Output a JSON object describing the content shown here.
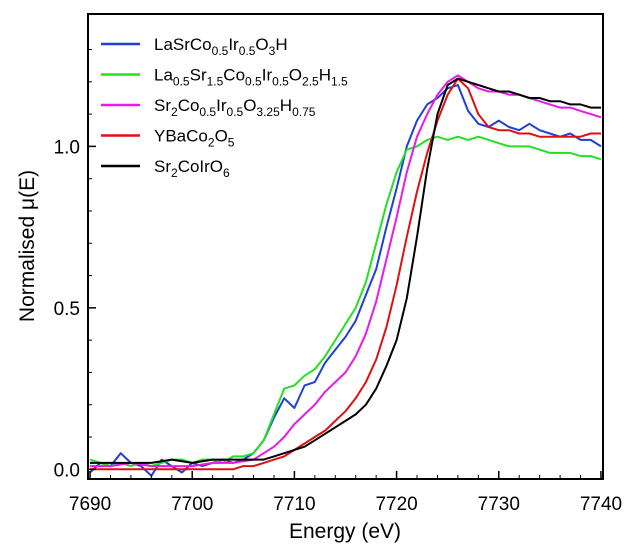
{
  "chart_data": {
    "type": "line",
    "xlabel": "Energy (eV)",
    "ylabel": "Normalised μ(E)",
    "xlim": [
      7689.8,
      7740.2
    ],
    "ylim": [
      -0.03,
      1.41
    ],
    "xticks": [
      7690,
      7700,
      7710,
      7720,
      7730,
      7740
    ],
    "yticks": [
      0.0,
      0.5,
      1.0
    ],
    "ytick_labels": [
      "0.0",
      "0.5",
      "1.0"
    ],
    "legend_position": "top-left",
    "series": [
      {
        "name": "LaSrCo0.5Ir0.5O3H",
        "label_parts": [
          [
            "LaSrCo",
            ""
          ],
          [
            "0.5",
            "sub"
          ],
          [
            "Ir",
            ""
          ],
          [
            "0.5",
            "sub"
          ],
          [
            "O",
            ""
          ],
          [
            "3",
            "sub"
          ],
          [
            "H",
            ""
          ]
        ],
        "color": "#1f3fd8",
        "points": [
          [
            7690,
            -0.01
          ],
          [
            7691,
            0.02
          ],
          [
            7692,
            0.01
          ],
          [
            7693,
            0.05
          ],
          [
            7694,
            0.02
          ],
          [
            7695,
            0.01
          ],
          [
            7696,
            -0.02
          ],
          [
            7697,
            0.03
          ],
          [
            7698,
            0.01
          ],
          [
            7699,
            -0.01
          ],
          [
            7700,
            0.02
          ],
          [
            7701,
            0.01
          ],
          [
            7702,
            0.02
          ],
          [
            7703,
            0.03
          ],
          [
            7704,
            0.02
          ],
          [
            7705,
            0.03
          ],
          [
            7706,
            0.05
          ],
          [
            7707,
            0.09
          ],
          [
            7708,
            0.16
          ],
          [
            7709,
            0.22
          ],
          [
            7710,
            0.19
          ],
          [
            7711,
            0.26
          ],
          [
            7712,
            0.27
          ],
          [
            7713,
            0.33
          ],
          [
            7714,
            0.37
          ],
          [
            7715,
            0.41
          ],
          [
            7716,
            0.46
          ],
          [
            7717,
            0.54
          ],
          [
            7718,
            0.62
          ],
          [
            7719,
            0.75
          ],
          [
            7720,
            0.87
          ],
          [
            7721,
            1.0
          ],
          [
            7722,
            1.08
          ],
          [
            7723,
            1.13
          ],
          [
            7724,
            1.15
          ],
          [
            7725,
            1.18
          ],
          [
            7726,
            1.19
          ],
          [
            7727,
            1.11
          ],
          [
            7728,
            1.07
          ],
          [
            7729,
            1.06
          ],
          [
            7730,
            1.08
          ],
          [
            7731,
            1.06
          ],
          [
            7732,
            1.05
          ],
          [
            7733,
            1.07
          ],
          [
            7734,
            1.05
          ],
          [
            7735,
            1.04
          ],
          [
            7736,
            1.03
          ],
          [
            7737,
            1.04
          ],
          [
            7738,
            1.02
          ],
          [
            7739,
            1.02
          ],
          [
            7740,
            1.0
          ]
        ]
      },
      {
        "name": "La0.5Sr1.5Co0.5Ir0.5O2.5H1.5",
        "label_parts": [
          [
            "La",
            ""
          ],
          [
            "0.5",
            "sub"
          ],
          [
            "Sr",
            ""
          ],
          [
            "1.5",
            "sub"
          ],
          [
            "Co",
            ""
          ],
          [
            "0.5",
            "sub"
          ],
          [
            "Ir",
            ""
          ],
          [
            "0.5",
            "sub"
          ],
          [
            "O",
            ""
          ],
          [
            "2.5",
            "sub"
          ],
          [
            "H",
            ""
          ],
          [
            "1.5",
            "sub"
          ]
        ],
        "color": "#22e022",
        "points": [
          [
            7690,
            0.03
          ],
          [
            7691,
            0.02
          ],
          [
            7692,
            0.01
          ],
          [
            7693,
            0.02
          ],
          [
            7694,
            0.01
          ],
          [
            7695,
            0.02
          ],
          [
            7696,
            0.01
          ],
          [
            7697,
            0.02
          ],
          [
            7698,
            0.03
          ],
          [
            7699,
            0.03
          ],
          [
            7700,
            0.02
          ],
          [
            7701,
            0.03
          ],
          [
            7702,
            0.03
          ],
          [
            7703,
            0.02
          ],
          [
            7704,
            0.04
          ],
          [
            7705,
            0.04
          ],
          [
            7706,
            0.05
          ],
          [
            7707,
            0.09
          ],
          [
            7708,
            0.17
          ],
          [
            7709,
            0.25
          ],
          [
            7710,
            0.26
          ],
          [
            7711,
            0.29
          ],
          [
            7712,
            0.31
          ],
          [
            7713,
            0.35
          ],
          [
            7714,
            0.4
          ],
          [
            7715,
            0.45
          ],
          [
            7716,
            0.5
          ],
          [
            7717,
            0.58
          ],
          [
            7718,
            0.7
          ],
          [
            7719,
            0.82
          ],
          [
            7720,
            0.92
          ],
          [
            7721,
            0.99
          ],
          [
            7722,
            1.0
          ],
          [
            7723,
            1.02
          ],
          [
            7724,
            1.03
          ],
          [
            7725,
            1.02
          ],
          [
            7726,
            1.03
          ],
          [
            7727,
            1.02
          ],
          [
            7728,
            1.03
          ],
          [
            7729,
            1.02
          ],
          [
            7730,
            1.01
          ],
          [
            7731,
            1.0
          ],
          [
            7732,
            1.0
          ],
          [
            7733,
            1.0
          ],
          [
            7734,
            0.99
          ],
          [
            7735,
            0.98
          ],
          [
            7736,
            0.98
          ],
          [
            7737,
            0.98
          ],
          [
            7738,
            0.97
          ],
          [
            7739,
            0.97
          ],
          [
            7740,
            0.96
          ]
        ]
      },
      {
        "name": "Sr2Co0.5Ir0.5O3.25H0.75",
        "label_parts": [
          [
            "Sr",
            ""
          ],
          [
            "2",
            "sub"
          ],
          [
            "Co",
            ""
          ],
          [
            "0.5",
            "sub"
          ],
          [
            "Ir",
            ""
          ],
          [
            "0.5",
            "sub"
          ],
          [
            "O",
            ""
          ],
          [
            "3.25",
            "sub"
          ],
          [
            "H",
            ""
          ],
          [
            "0.75",
            "sub"
          ]
        ],
        "color": "#e81ae8",
        "points": [
          [
            7690,
            0.01
          ],
          [
            7692,
            0.01
          ],
          [
            7694,
            0.02
          ],
          [
            7696,
            0.01
          ],
          [
            7698,
            0.01
          ],
          [
            7700,
            0.01
          ],
          [
            7702,
            0.02
          ],
          [
            7704,
            0.02
          ],
          [
            7706,
            0.03
          ],
          [
            7708,
            0.07
          ],
          [
            7709,
            0.1
          ],
          [
            7710,
            0.14
          ],
          [
            7711,
            0.17
          ],
          [
            7712,
            0.2
          ],
          [
            7713,
            0.24
          ],
          [
            7714,
            0.27
          ],
          [
            7715,
            0.3
          ],
          [
            7716,
            0.35
          ],
          [
            7717,
            0.42
          ],
          [
            7718,
            0.52
          ],
          [
            7719,
            0.65
          ],
          [
            7720,
            0.78
          ],
          [
            7721,
            0.92
          ],
          [
            7722,
            1.03
          ],
          [
            7723,
            1.1
          ],
          [
            7724,
            1.16
          ],
          [
            7725,
            1.2
          ],
          [
            7726,
            1.22
          ],
          [
            7727,
            1.2
          ],
          [
            7728,
            1.18
          ],
          [
            7729,
            1.17
          ],
          [
            7730,
            1.17
          ],
          [
            7731,
            1.16
          ],
          [
            7732,
            1.16
          ],
          [
            7733,
            1.15
          ],
          [
            7734,
            1.14
          ],
          [
            7735,
            1.13
          ],
          [
            7736,
            1.12
          ],
          [
            7737,
            1.12
          ],
          [
            7738,
            1.11
          ],
          [
            7739,
            1.1
          ],
          [
            7740,
            1.09
          ]
        ]
      },
      {
        "name": "YBaCo2O5",
        "label_parts": [
          [
            "YBaCo",
            ""
          ],
          [
            "2",
            "sub"
          ],
          [
            "O",
            ""
          ],
          [
            "5",
            "sub"
          ]
        ],
        "color": "#e01010",
        "points": [
          [
            7690,
            0.0
          ],
          [
            7692,
            0.0
          ],
          [
            7694,
            0.0
          ],
          [
            7696,
            0.0
          ],
          [
            7698,
            0.0
          ],
          [
            7700,
            0.0
          ],
          [
            7702,
            0.0
          ],
          [
            7704,
            0.0
          ],
          [
            7705,
            0.01
          ],
          [
            7706,
            0.01
          ],
          [
            7707,
            0.02
          ],
          [
            7708,
            0.03
          ],
          [
            7709,
            0.04
          ],
          [
            7710,
            0.06
          ],
          [
            7711,
            0.08
          ],
          [
            7712,
            0.1
          ],
          [
            7713,
            0.12
          ],
          [
            7714,
            0.15
          ],
          [
            7715,
            0.18
          ],
          [
            7716,
            0.22
          ],
          [
            7717,
            0.27
          ],
          [
            7718,
            0.34
          ],
          [
            7719,
            0.44
          ],
          [
            7720,
            0.57
          ],
          [
            7721,
            0.72
          ],
          [
            7722,
            0.86
          ],
          [
            7723,
            0.98
          ],
          [
            7724,
            1.08
          ],
          [
            7725,
            1.16
          ],
          [
            7726,
            1.21
          ],
          [
            7727,
            1.18
          ],
          [
            7728,
            1.1
          ],
          [
            7729,
            1.06
          ],
          [
            7730,
            1.05
          ],
          [
            7731,
            1.05
          ],
          [
            7732,
            1.04
          ],
          [
            7733,
            1.04
          ],
          [
            7734,
            1.03
          ],
          [
            7735,
            1.03
          ],
          [
            7736,
            1.03
          ],
          [
            7737,
            1.03
          ],
          [
            7738,
            1.03
          ],
          [
            7739,
            1.04
          ],
          [
            7740,
            1.04
          ]
        ]
      },
      {
        "name": "Sr2CoIrO6",
        "label_parts": [
          [
            "Sr",
            ""
          ],
          [
            "2",
            "sub"
          ],
          [
            "CoIrO",
            ""
          ],
          [
            "6",
            "sub"
          ]
        ],
        "color": "#000000",
        "points": [
          [
            7690,
            0.02
          ],
          [
            7692,
            0.02
          ],
          [
            7694,
            0.02
          ],
          [
            7696,
            0.02
          ],
          [
            7698,
            0.03
          ],
          [
            7700,
            0.02
          ],
          [
            7702,
            0.03
          ],
          [
            7704,
            0.03
          ],
          [
            7706,
            0.03
          ],
          [
            7707,
            0.03
          ],
          [
            7708,
            0.04
          ],
          [
            7709,
            0.05
          ],
          [
            7710,
            0.06
          ],
          [
            7711,
            0.07
          ],
          [
            7712,
            0.09
          ],
          [
            7713,
            0.11
          ],
          [
            7714,
            0.13
          ],
          [
            7715,
            0.15
          ],
          [
            7716,
            0.17
          ],
          [
            7717,
            0.2
          ],
          [
            7718,
            0.25
          ],
          [
            7719,
            0.32
          ],
          [
            7720,
            0.4
          ],
          [
            7721,
            0.53
          ],
          [
            7722,
            0.72
          ],
          [
            7723,
            0.93
          ],
          [
            7724,
            1.1
          ],
          [
            7725,
            1.19
          ],
          [
            7726,
            1.21
          ],
          [
            7727,
            1.2
          ],
          [
            7728,
            1.19
          ],
          [
            7729,
            1.18
          ],
          [
            7730,
            1.17
          ],
          [
            7731,
            1.17
          ],
          [
            7732,
            1.16
          ],
          [
            7733,
            1.15
          ],
          [
            7734,
            1.15
          ],
          [
            7735,
            1.14
          ],
          [
            7736,
            1.14
          ],
          [
            7737,
            1.13
          ],
          [
            7738,
            1.13
          ],
          [
            7739,
            1.12
          ],
          [
            7740,
            1.12
          ]
        ]
      }
    ]
  }
}
